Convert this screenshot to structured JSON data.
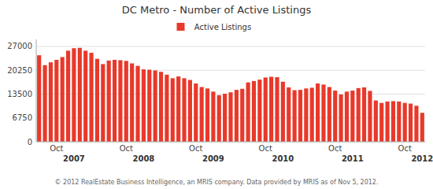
{
  "chart_data": {
    "type": "bar",
    "title": "DC Metro - Number of Active Listings",
    "categories": [
      null,
      null,
      null,
      "Oct",
      null,
      null,
      null,
      null,
      null,
      null,
      null,
      null,
      null,
      null,
      null,
      "Oct",
      null,
      null,
      null,
      null,
      null,
      null,
      null,
      null,
      null,
      null,
      null,
      "Oct",
      null,
      null,
      null,
      null,
      null,
      null,
      null,
      null,
      null,
      null,
      null,
      "Oct",
      null,
      null,
      null,
      null,
      null,
      null,
      null,
      null,
      null,
      null,
      null,
      "Oct",
      null,
      null,
      null,
      null,
      null,
      null,
      null,
      null,
      null,
      null,
      null,
      "Oct",
      null,
      null,
      null
    ],
    "series": [
      {
        "name": "Active Listings",
        "color": "#e8392a",
        "values": [
          24500,
          21700,
          22500,
          23200,
          24000,
          25800,
          26500,
          26600,
          25800,
          25200,
          23500,
          22000,
          23000,
          23200,
          23100,
          22900,
          22200,
          21500,
          20500,
          20400,
          20200,
          19800,
          19000,
          18000,
          18500,
          18000,
          17500,
          16500,
          15500,
          15100,
          14200,
          13200,
          13600,
          14000,
          14700,
          15000,
          16800,
          17200,
          17600,
          18200,
          18400,
          18300,
          17000,
          15400,
          14600,
          14700,
          15100,
          15300,
          16500,
          16200,
          15500,
          14500,
          13400,
          14200,
          14500,
          15200,
          15400,
          14400,
          11700,
          11000,
          11400,
          11500,
          11400,
          11000,
          10800,
          10200,
          8200
        ]
      }
    ],
    "ylim": [
      0,
      29000
    ],
    "yticks": [
      0,
      6750,
      13500,
      20250,
      27000
    ],
    "grid": true,
    "legend": "top",
    "annotations": [
      {
        "text": "2007",
        "x": 6
      },
      {
        "text": "2008",
        "x": 18
      },
      {
        "text": "2009",
        "x": 30
      },
      {
        "text": "2010",
        "x": 42
      },
      {
        "text": "2011",
        "x": 54
      },
      {
        "text": "2012",
        "x": 66
      },
      {
        "text": "© 2012 RealEstate Business Intelligence, an MRIS company. Data provided by MRIS as of Nov 5, 2012."
      }
    ]
  }
}
